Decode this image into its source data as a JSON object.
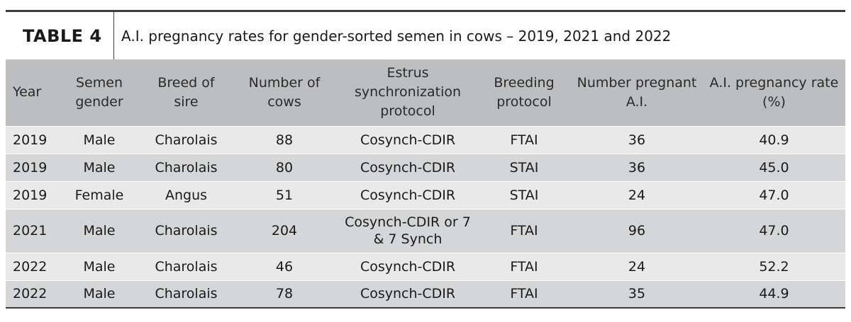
{
  "title": {
    "label": "TABLE 4",
    "caption": "A.I. pregnancy rates for gender-sorted semen in cows – 2019, 2021 and 2022"
  },
  "columns": [
    "Year",
    "Semen gender",
    "Breed of sire",
    "Number of cows",
    "Estrus synchronization protocol",
    "Breeding protocol",
    "Number pregnant A.I.",
    "A.I. pregnancy rate (%)"
  ],
  "rows": [
    [
      "2019",
      "Male",
      "Charolais",
      "88",
      "Cosynch-CDIR",
      "FTAI",
      "36",
      "40.9"
    ],
    [
      "2019",
      "Male",
      "Charolais",
      "80",
      "Cosynch-CDIR",
      "STAI",
      "36",
      "45.0"
    ],
    [
      "2019",
      "Female",
      "Angus",
      "51",
      "Cosynch-CDIR",
      "STAI",
      "24",
      "47.0"
    ],
    [
      "2021",
      "Male",
      "Charolais",
      "204",
      "Cosynch-CDIR or 7 & 7 Synch",
      "FTAI",
      "96",
      "47.0"
    ],
    [
      "2022",
      "Male",
      "Charolais",
      "46",
      "Cosynch-CDIR",
      "FTAI",
      "24",
      "52.2"
    ],
    [
      "2022",
      "Male",
      "Charolais",
      "78",
      "Cosynch-CDIR",
      "FTAI",
      "35",
      "44.9"
    ]
  ]
}
